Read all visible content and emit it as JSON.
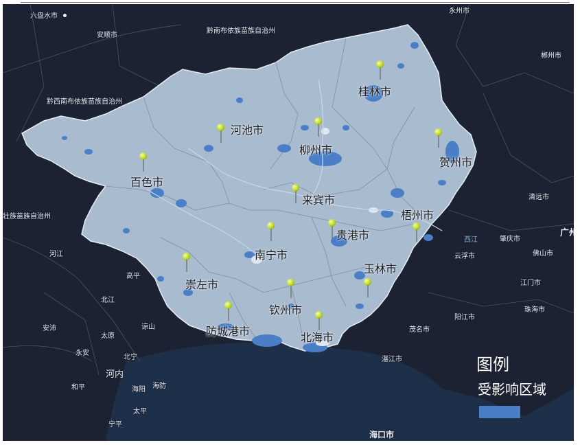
{
  "legend": {
    "title": "图例",
    "label": "受影响区域",
    "swatch_color": "#4a7fc8"
  },
  "colors": {
    "background": "#1c2232",
    "sea": "#1e2f4a",
    "region_fill": "#a9bbcf",
    "affected": "#4a7fc8",
    "pin": "#b9d61e"
  },
  "guangxi_cities": [
    "桂林市",
    "河池市",
    "柳州市",
    "贺州市",
    "百色市",
    "来宾市",
    "梧州市",
    "贵港市",
    "南宁市",
    "玉林市",
    "崇左市",
    "钦州市",
    "防城港市",
    "北海市"
  ],
  "surrounding_places": [
    "永州市",
    "六盘水市",
    "安顺市",
    "黔南布依族苗族自治州",
    "郴州市",
    "黔西南布依族苗族自治州",
    "清远市",
    "壮族苗族自治州",
    "河江",
    "肇庆市",
    "广州",
    "佛山市",
    "云浮市",
    "西江",
    "高平",
    "江门市",
    "北江",
    "阳江市",
    "珠海市",
    "安沛",
    "谅山",
    "太原",
    "茂名市",
    "永安",
    "北宁",
    "湛江市",
    "河内",
    "和平",
    "海阳",
    "海防",
    "太平",
    "宁平",
    "海口市"
  ],
  "pins": 14
}
